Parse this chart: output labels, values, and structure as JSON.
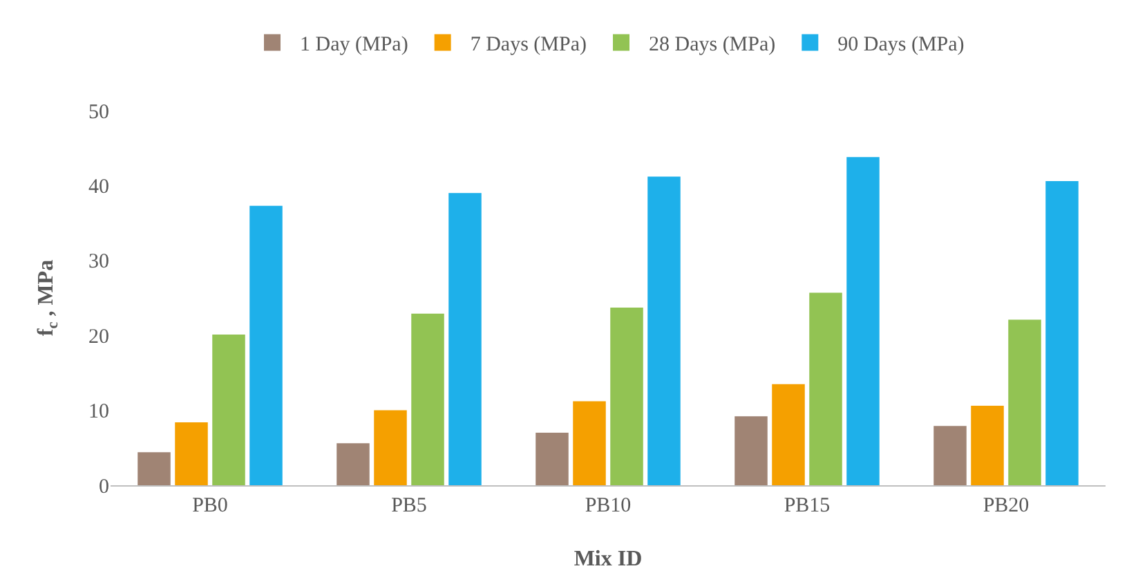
{
  "chart_data": {
    "type": "bar",
    "xlabel": "Mix ID",
    "ylabel": "f$_{c}$ , MPa",
    "categories": [
      "PB0",
      "PB5",
      "PB10",
      "PB15",
      "PB20"
    ],
    "series": [
      {
        "name": "1 Day (MPa)",
        "color": "#a08474",
        "values": [
          4.4,
          5.6,
          7.0,
          9.2,
          7.9
        ]
      },
      {
        "name": "7 Days (MPa)",
        "color": "#f5a000",
        "values": [
          8.4,
          10.0,
          11.2,
          13.5,
          10.6
        ]
      },
      {
        "name": "28 Days (MPa)",
        "color": "#92c353",
        "values": [
          20.1,
          22.9,
          23.7,
          25.7,
          22.1
        ]
      },
      {
        "name": "90 Days (MPa)",
        "color": "#1eb0ea",
        "values": [
          37.3,
          39.0,
          41.2,
          43.8,
          40.6
        ]
      }
    ],
    "ylim": [
      0,
      50
    ],
    "yticks": [
      0,
      10,
      20,
      30,
      40,
      50
    ],
    "grid": false,
    "legend": "top"
  }
}
